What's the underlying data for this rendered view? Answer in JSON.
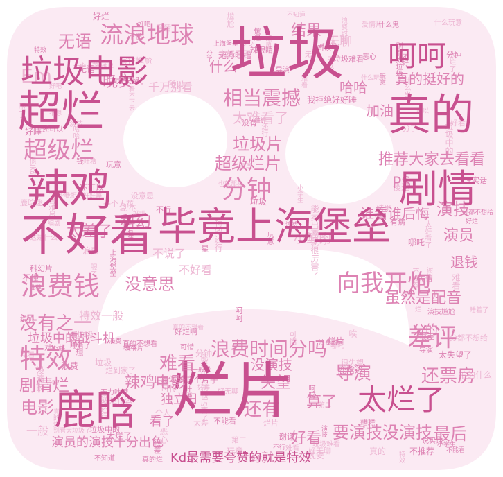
{
  "colors": {
    "background": "#ffffff",
    "shape_fill": "#fbeaf3",
    "primary": "#c8508f",
    "mid": "#dd82b3",
    "light": "#edb6d3",
    "faint": "#f5d3e6"
  },
  "words_large": [
    "垃圾",
    "烂片",
    "不好看",
    "毕竟上海堡垒",
    "超烂",
    "真的",
    "辣鸡",
    "剧情",
    "鹿晗",
    "垃圾电影",
    "流浪地球",
    "呵呵",
    "超级烂",
    "分钟",
    "浪费钱",
    "特效",
    "向我开炮",
    "差评",
    "太烂了",
    "浪费时间分吗",
    "相当震撼",
    "垃圾片",
    "超级烂片",
    "推荐大家去看看",
    "真的挺好的",
    "还票房",
    "要演技没演技",
    "Kd最需要夸赞的就是特效",
    "演员的演技十分出色",
    "没有之一",
    "辣鸡电影",
    "难看"
  ],
  "words_medium": [
    "无语",
    "Em",
    "晚安",
    "没意思",
    "哈哈",
    "加油",
    "什么",
    "科幻",
    "演技",
    "演员",
    "退钱",
    "导演",
    "失望",
    "还有",
    "最后",
    "好看",
    "结果",
    "无聊",
    "太难看了",
    "不说了",
    "电影",
    "剧情烂",
    "一般",
    "虽然是配音",
    "垃圾中的战斗机",
    "分的",
    "PS",
    "谁看谁后悔",
    "小鲜肉",
    "算了",
    "不好看",
    "千万别看",
    "没演技",
    "太差了",
    "特效一般",
    "独立日",
    "看了"
  ],
  "words_small": [
    "演技",
    "无语",
    "可以",
    "服了",
    "不能看",
    "一个人花",
    "不知道",
    "所以",
    "别看太垃圾了",
    "能卖出票就很厉害了",
    "垃圾",
    "垃圾难看",
    "好无聊",
    "爱情片",
    "不推荐",
    "很失望",
    "哪吒",
    "无力吐槽",
    "浪费",
    "好吧",
    "第二",
    "特效",
    "什么鬼",
    "恶心",
    "玩意",
    "没有",
    "难看",
    "一分都不想给",
    "真的烂",
    "爱情",
    "烂片",
    "演技尴尬",
    "玩意",
    "鹿晗迷",
    "呵呵",
    "分钟",
    "推荐",
    "睡着了",
    "上海堡垒",
    "傻逼",
    "剧本",
    "好睡",
    "谢谢",
    "没意思",
    "对不起",
    "我拒绝好好睡",
    "不想",
    "真的不想看",
    "说实话",
    "分了",
    "难看",
    "垃圾中的",
    "垃圾",
    "导演",
    "小学生",
    "太失望了",
    "太好看了",
    "不懂",
    "编剧",
    "分吗",
    "尴尬",
    "不行",
    "好烂",
    "什么玩意",
    "很差",
    "浪费时间",
    "还可以",
    "太烂了",
    "吐槽",
    "有病",
    "可惜",
    "特效还行",
    "浪费",
    "一言难尽",
    "这是什么",
    "结果",
    "拍的什么",
    "太差",
    "一般般",
    "无聊",
    "差评",
    "好看",
    "不好",
    "烂",
    "哈哈",
    "科幻片",
    "个人",
    "钱",
    "真的",
    "恶心",
    "可怜",
    "好烂啊",
    "上海堡垒这个片子",
    "没演技",
    "也就那样",
    "看不下去",
    "退票",
    "好吧",
    "辣眼睛",
    "一星",
    "还行",
    "烂到家了",
    "糟糕",
    "唉",
    "晚安"
  ]
}
